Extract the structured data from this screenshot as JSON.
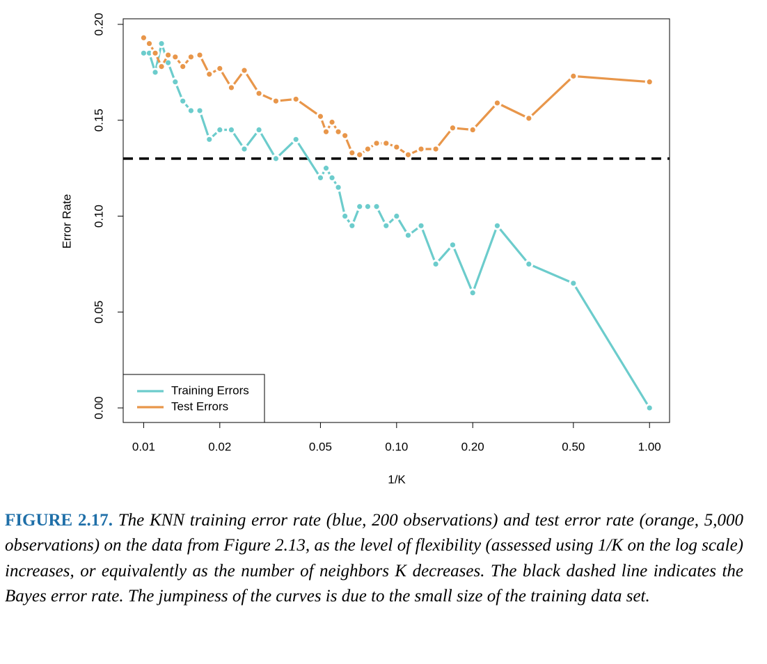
{
  "chart_data": {
    "type": "line",
    "xlabel": "1/K",
    "ylabel": "Error Rate",
    "x": [
      0.01,
      0.010526,
      0.011111,
      0.011765,
      0.0125,
      0.013333,
      0.014286,
      0.015385,
      0.016667,
      0.018182,
      0.02,
      0.022222,
      0.025,
      0.028571,
      0.033333,
      0.04,
      0.05,
      0.052632,
      0.055556,
      0.058824,
      0.0625,
      0.066667,
      0.071429,
      0.076923,
      0.083333,
      0.090909,
      0.1,
      0.111111,
      0.125,
      0.142857,
      0.166667,
      0.2,
      0.25,
      0.333333,
      0.5,
      1
    ],
    "series": [
      {
        "name": "Training Errors",
        "color": "#6ccccc",
        "values": [
          0.185,
          0.185,
          0.175,
          0.19,
          0.18,
          0.17,
          0.16,
          0.155,
          0.155,
          0.14,
          0.145,
          0.145,
          0.135,
          0.145,
          0.13,
          0.14,
          0.12,
          0.125,
          0.12,
          0.115,
          0.1,
          0.095,
          0.105,
          0.105,
          0.105,
          0.095,
          0.1,
          0.09,
          0.095,
          0.075,
          0.085,
          0.06,
          0.095,
          0.075,
          0.065,
          0
        ]
      },
      {
        "name": "Test Errors",
        "color": "#e8964a",
        "values": [
          0.193,
          0.19,
          0.185,
          0.178,
          0.184,
          0.183,
          0.178,
          0.183,
          0.184,
          0.174,
          0.177,
          0.167,
          0.176,
          0.164,
          0.16,
          0.161,
          0.152,
          0.144,
          0.149,
          0.144,
          0.142,
          0.133,
          0.132,
          0.135,
          0.138,
          0.138,
          0.136,
          0.132,
          0.135,
          0.135,
          0.146,
          0.145,
          0.159,
          0.151,
          0.173,
          0.17
        ]
      }
    ],
    "reference_line": {
      "value": 0.13,
      "color": "#000000",
      "dashed": true
    },
    "xscale": "log",
    "xlim": [
      0.0083,
      1.2
    ],
    "xticks": [
      0.01,
      0.02,
      0.05,
      {
        "value": 0.1,
        "label": "0.10"
      },
      {
        "value": 0.2,
        "label": "0.20"
      },
      {
        "value": 0.5,
        "label": "0.50"
      },
      {
        "value": 1,
        "label": "1.00"
      }
    ],
    "ylim": [
      -0.0076,
      0.2029
    ],
    "yticks": [
      {
        "value": 0,
        "label": "0.00"
      },
      {
        "value": 0.05,
        "label": "0.05"
      },
      {
        "value": 0.1,
        "label": "0.10"
      },
      {
        "value": 0.15,
        "label": "0.15"
      },
      {
        "value": 0.2,
        "label": "0.20"
      }
    ],
    "legend": "bottom-left"
  },
  "caption": {
    "label": "FIGURE 2.17.",
    "text": "The KNN training error rate (blue, 200 observations) and test error rate (orange, 5,000 observations) on the data from Figure 2.13, as the level of flexibility (assessed using 1/K on the log scale) increases, or equivalently as the number of neighbors K decreases. The black dashed line indicates the Bayes error rate. The jumpiness of the curves is due to the small size of the training data set."
  }
}
